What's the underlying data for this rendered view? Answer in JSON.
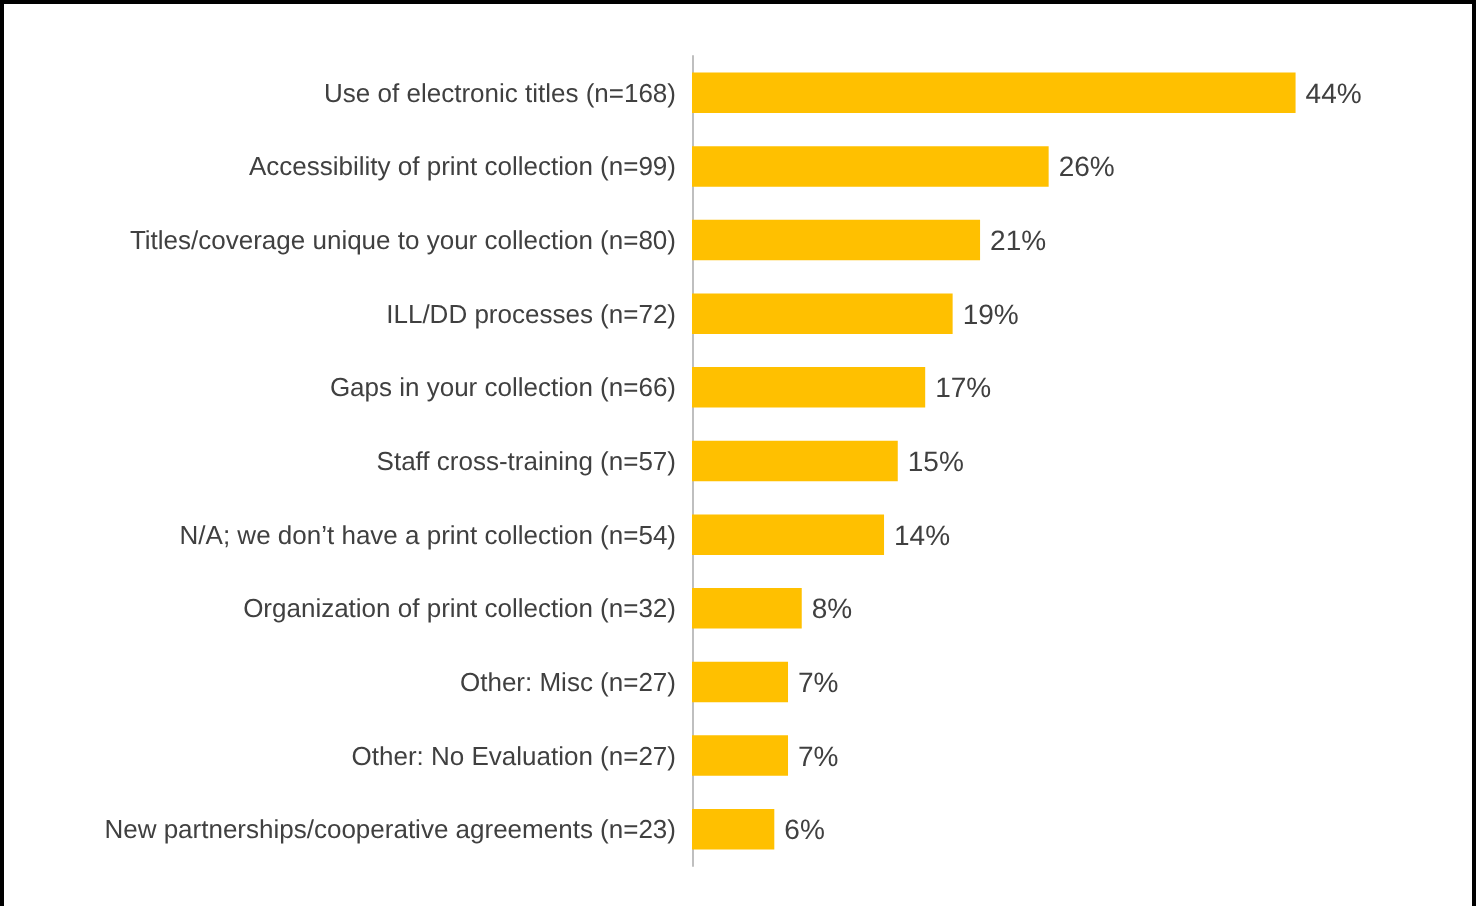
{
  "chart_data": {
    "type": "bar",
    "orientation": "horizontal",
    "categories": [
      "Use of electronic titles (n=168)",
      "Accessibility of print collection (n=99)",
      "Titles/coverage unique to your collection (n=80)",
      "ILL/DD processes (n=72)",
      "Gaps in your collection (n=66)",
      "Staff cross-training (n=57)",
      "N/A; we don’t have a print collection (n=54)",
      "Organization of print collection (n=32)",
      "Other: Misc (n=27)",
      "Other: No Evaluation (n=27)",
      "New partnerships/cooperative agreements (n=23)"
    ],
    "values": [
      44,
      26,
      21,
      19,
      17,
      15,
      14,
      8,
      7,
      7,
      6
    ],
    "value_labels": [
      "44%",
      "26%",
      "21%",
      "19%",
      "17%",
      "15%",
      "14%",
      "8%",
      "7%",
      "7%",
      "6%"
    ],
    "color": "#ffc000"
  }
}
